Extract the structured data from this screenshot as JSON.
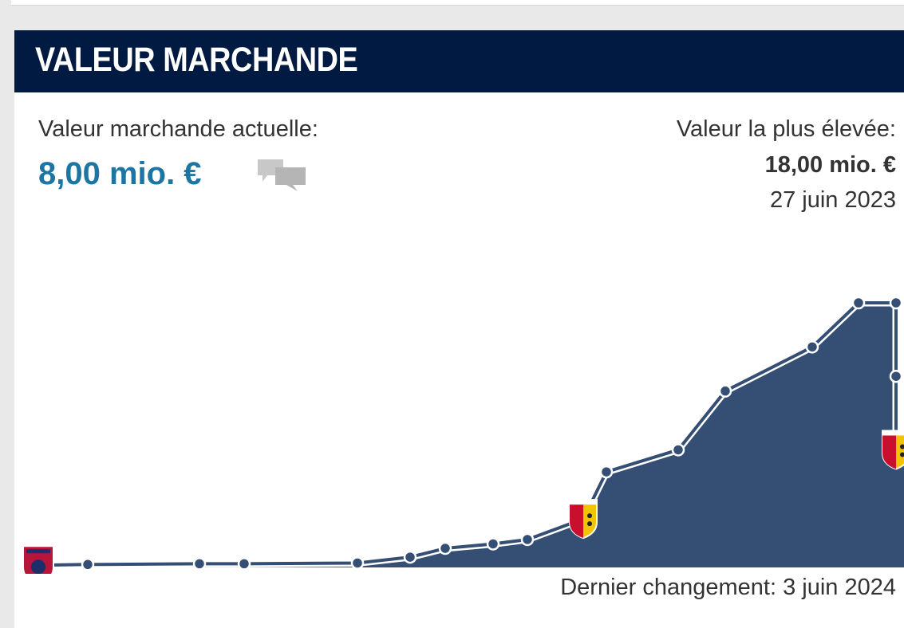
{
  "header": {
    "title": "VALEUR MARCHANDE"
  },
  "current": {
    "label": "Valeur marchande actuelle:",
    "value": "8,00 mio. €",
    "icon": "comment-icon"
  },
  "highest": {
    "label": "Valeur la plus élevée:",
    "value": "18,00 mio. €",
    "date": "27 juin 2023"
  },
  "footer": {
    "last_change": "Dernier changement: 3 juin 2024"
  },
  "colors": {
    "header_bg": "#001a42",
    "accent_value": "#1d75a3",
    "area_fill": "#344e74",
    "line": "#344e74"
  },
  "chart_data": {
    "type": "area",
    "y_unit": "mio. €",
    "values": [
      0.15,
      0.2,
      0.25,
      0.25,
      0.3,
      0.7,
      1.3,
      1.6,
      1.9,
      3.3,
      6.5,
      8.0,
      12.0,
      15.0,
      18.0,
      18.0,
      13.0,
      8.0
    ],
    "club_markers": [
      {
        "point": 0,
        "club_logo": "clermont-foot-logo"
      },
      {
        "point": 9,
        "club_logo": "rc-lens-logo"
      },
      {
        "point": 17,
        "club_logo": "rc-lens-logo"
      }
    ]
  }
}
